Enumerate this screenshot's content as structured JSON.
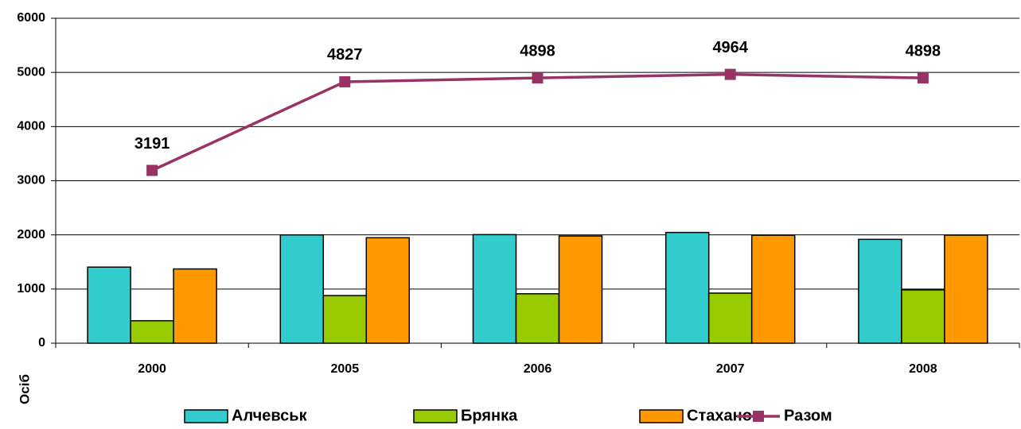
{
  "chart_data": {
    "type": "bar",
    "y_label": "Осіб",
    "categories": [
      "2000",
      "2005",
      "2006",
      "2007",
      "2008"
    ],
    "series": [
      {
        "name": "Алчевськ",
        "color": "#33cccc",
        "values": [
          1405,
          2000,
          2005,
          2045,
          1917
        ]
      },
      {
        "name": "Брянка",
        "color": "#99cc00",
        "values": [
          415,
          880,
          913,
          925,
          985
        ]
      },
      {
        "name": "Стаханов",
        "color": "#ff9900",
        "values": [
          1371,
          1947,
          1980,
          1994,
          1996
        ]
      },
      {
        "name": "Разом",
        "color": "#993366",
        "type": "line",
        "values": [
          3191,
          4827,
          4898,
          4964,
          4898
        ]
      }
    ],
    "ylim": [
      0,
      6000
    ],
    "yticks": [
      0,
      1000,
      2000,
      3000,
      4000,
      5000,
      6000
    ],
    "grid": true,
    "legend": "bottom"
  }
}
